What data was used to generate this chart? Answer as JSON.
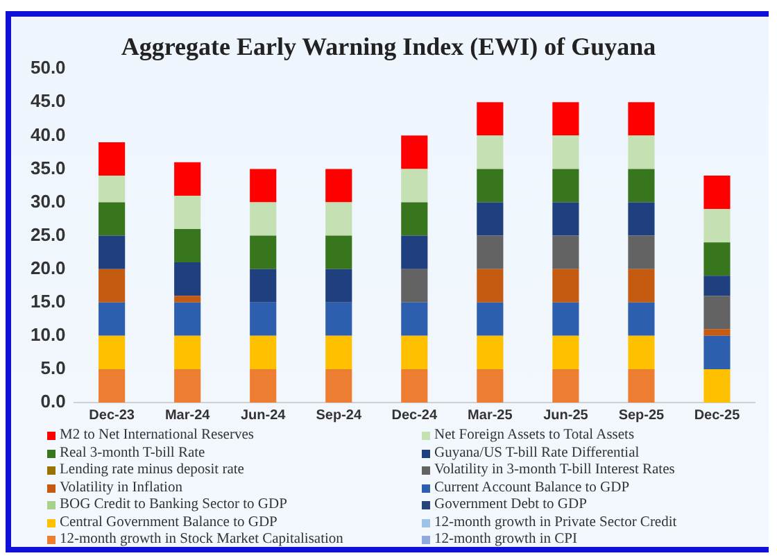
{
  "chart_data": {
    "type": "bar",
    "stacked": true,
    "title": "Aggregate Early Warning Index (EWI) of Guyana",
    "categories": [
      "Dec-23",
      "Mar-24",
      "Jun-24",
      "Sep-24",
      "Dec-24",
      "Mar-25",
      "Jun-25",
      "Sep-25",
      "Dec-25"
    ],
    "ylim": [
      0,
      50
    ],
    "yticks": [
      {
        "value": 0,
        "label": "0.0"
      },
      {
        "value": 5,
        "label": "5.0"
      },
      {
        "value": 10,
        "label": "10.0"
      },
      {
        "value": 15,
        "label": "15.0"
      },
      {
        "value": 20,
        "label": "20.0"
      },
      {
        "value": 25,
        "label": "25.0"
      },
      {
        "value": 30,
        "label": "30.0"
      },
      {
        "value": 35,
        "label": "35.0"
      },
      {
        "value": 40,
        "label": "40.0"
      },
      {
        "value": 45,
        "label": "45.0"
      },
      {
        "value": 50,
        "label": "50.0"
      }
    ],
    "grid": false,
    "legend": "bottom",
    "series": [
      {
        "name": "12-month growth in CPI",
        "color": "#8faadc",
        "values": [
          0,
          0,
          0,
          0,
          0,
          0,
          0,
          0,
          0
        ]
      },
      {
        "name": "12-month growth in Stock Market Capitalisation",
        "color": "#ed7d31",
        "values": [
          5,
          5,
          5,
          5,
          5,
          5,
          5,
          5,
          0
        ]
      },
      {
        "name": "12-month growth in Private Sector Credit",
        "color": "#9dc3e6",
        "values": [
          0,
          0,
          0,
          0,
          0,
          0,
          0,
          0,
          0
        ]
      },
      {
        "name": "Central Government Balance to GDP",
        "color": "#ffc000",
        "values": [
          5,
          5,
          5,
          5,
          5,
          5,
          5,
          5,
          5
        ]
      },
      {
        "name": "Government Debt to GDP",
        "color": "#264478",
        "values": [
          0,
          0,
          0,
          0,
          0,
          0,
          0,
          0,
          0
        ]
      },
      {
        "name": "BOG Credit to Banking Sector to GDP",
        "color": "#a9d18e",
        "values": [
          0,
          0,
          0,
          0,
          0,
          0,
          0,
          0,
          0
        ]
      },
      {
        "name": "Current Account Balance to GDP",
        "color": "#2e5fae",
        "values": [
          5,
          5,
          5,
          5,
          5,
          5,
          5,
          5,
          5
        ]
      },
      {
        "name": "Volatility in Inflation",
        "color": "#c55a11",
        "values": [
          5,
          1,
          0,
          0,
          0,
          5,
          5,
          5,
          1
        ]
      },
      {
        "name": "Volatility in 3-month T-bill Interest Rates",
        "color": "#636363",
        "values": [
          0,
          0,
          0,
          0,
          5,
          5,
          5,
          5,
          5
        ]
      },
      {
        "name": "Lending rate minus deposit rate",
        "color": "#997300",
        "values": [
          0,
          0,
          0,
          0,
          0,
          0,
          0,
          0,
          0
        ]
      },
      {
        "name": "Guyana/US T-bill Rate Differential",
        "color": "#1f3f7f",
        "values": [
          5,
          5,
          5,
          5,
          5,
          5,
          5,
          5,
          3
        ]
      },
      {
        "name": "Real 3-month T-bill Rate",
        "color": "#38761d",
        "values": [
          5,
          5,
          5,
          5,
          5,
          5,
          5,
          5,
          5
        ]
      },
      {
        "name": "Net Foreign Assets to Total Assets",
        "color": "#c5e0b3",
        "values": [
          4,
          5,
          5,
          5,
          5,
          5,
          5,
          5,
          5
        ]
      },
      {
        "name": "M2 to Net International Reserves",
        "color": "#ff0000",
        "values": [
          5,
          5,
          5,
          5,
          5,
          5,
          5,
          5,
          5
        ]
      }
    ]
  }
}
